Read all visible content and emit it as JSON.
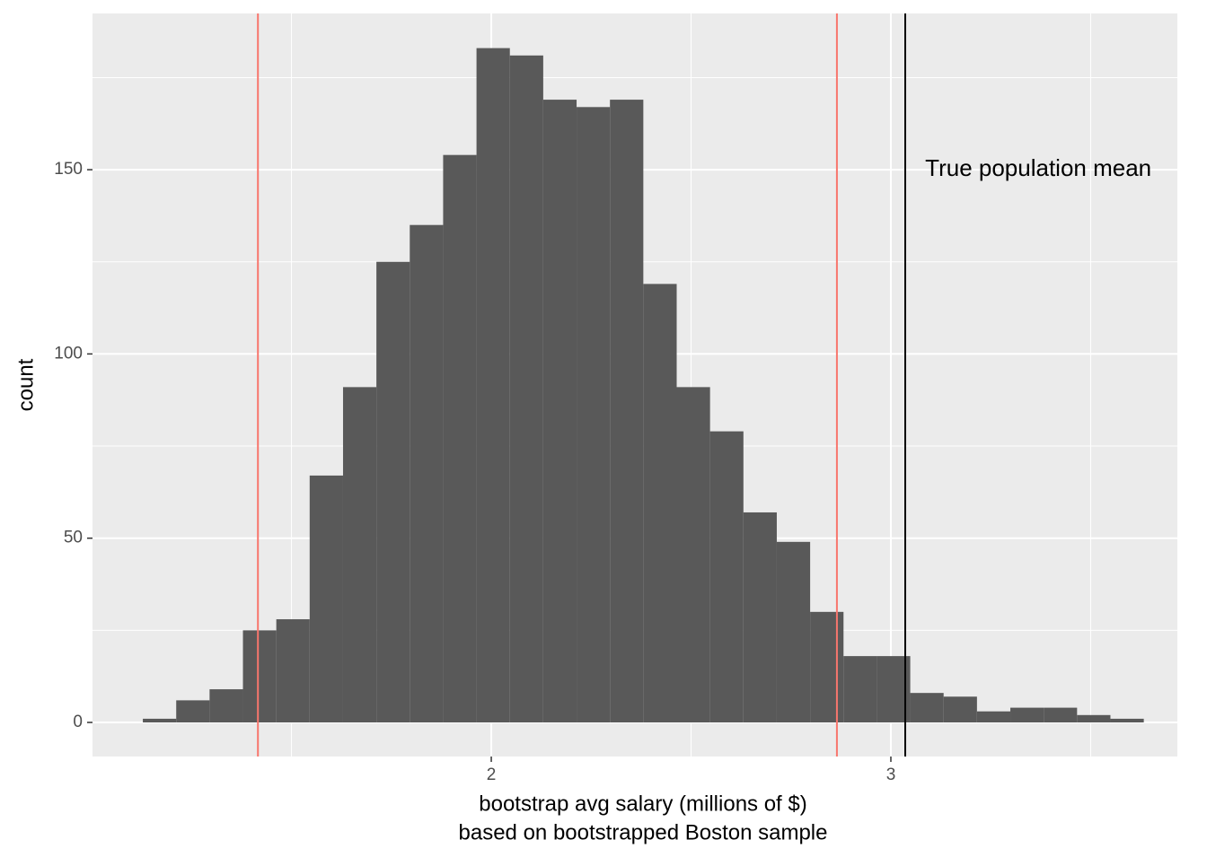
{
  "chart_data": {
    "type": "histogram",
    "xlabel": [
      "bootstrap avg salary (millions of $)",
      "based on bootstrapped Boston sample"
    ],
    "ylabel": "count",
    "bins": [
      1.128,
      1.2115,
      1.295,
      1.3785,
      1.462,
      1.5455,
      1.629,
      1.7125,
      1.796,
      1.8795,
      1.963,
      2.0465,
      2.13,
      2.2135,
      2.297,
      2.3805,
      2.464,
      2.5475,
      2.631,
      2.7145,
      2.798,
      2.8815,
      2.965,
      3.0485,
      3.132,
      3.2155,
      3.299,
      3.3825,
      3.466,
      3.5495,
      3.633
    ],
    "values": [
      1,
      6,
      9,
      25,
      28,
      67,
      91,
      125,
      135,
      154,
      183,
      181,
      169,
      167,
      169,
      119,
      91,
      79,
      57,
      49,
      30,
      18,
      18,
      8,
      7,
      3,
      4,
      4,
      2,
      1
    ],
    "color": "#595959",
    "xlim": [
      1.002,
      3.717
    ],
    "ylim": [
      -9.25,
      192.4
    ],
    "xticks": [
      2,
      3
    ],
    "yticks": [
      0,
      50,
      100,
      150
    ],
    "x_minor_ticks": [
      1.5,
      2.5,
      3.5
    ],
    "y_minor_ticks": [
      25,
      75,
      125,
      175
    ],
    "grid": true,
    "vlines": [
      {
        "x": 1.416,
        "color": "#f8766d"
      },
      {
        "x": 2.865,
        "color": "#f8766d"
      },
      {
        "x": 3.036,
        "color": "#000000"
      }
    ],
    "annotations": [
      {
        "text": "True population mean",
        "x": 3.369,
        "y": 150
      }
    ]
  }
}
